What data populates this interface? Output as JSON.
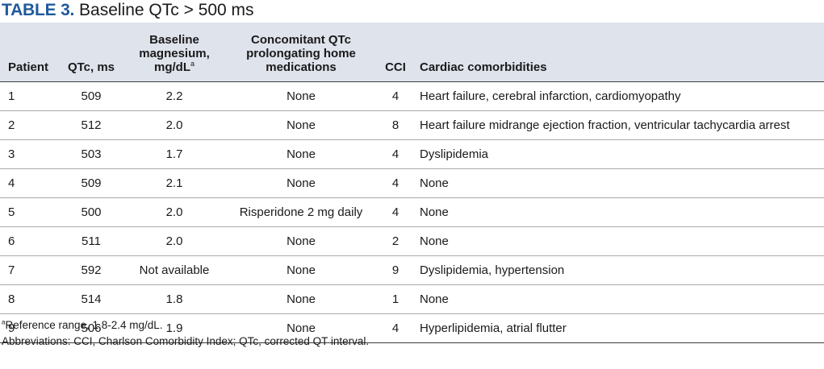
{
  "title": {
    "label": "TABLE 3.",
    "text": "Baseline QTc > 500 ms"
  },
  "headers": {
    "patient": "Patient",
    "qtc": "QTc, ms",
    "magnesium_line1": "Baseline",
    "magnesium_line2": "magnesium,",
    "magnesium_line3": "mg/dL",
    "magnesium_mark": "a",
    "medications_line1": "Concomitant QTc",
    "medications_line2": "prolongating home",
    "medications_line3": "medications",
    "cci": "CCI",
    "comorbidities": "Cardiac comorbidities"
  },
  "rows": [
    {
      "patient": "1",
      "qtc": "509",
      "magnesium": "2.2",
      "medications": "None",
      "cci": "4",
      "comorbidities": "Heart failure, cerebral infarction, cardiomyopathy"
    },
    {
      "patient": "2",
      "qtc": "512",
      "magnesium": "2.0",
      "medications": "None",
      "cci": "8",
      "comorbidities": "Heart failure midrange ejection fraction, ventricular tachycardia arrest"
    },
    {
      "patient": "3",
      "qtc": "503",
      "magnesium": "1.7",
      "medications": "None",
      "cci": "4",
      "comorbidities": "Dyslipidemia"
    },
    {
      "patient": "4",
      "qtc": "509",
      "magnesium": "2.1",
      "medications": "None",
      "cci": "4",
      "comorbidities": "None"
    },
    {
      "patient": "5",
      "qtc": "500",
      "magnesium": "2.0",
      "medications": "Risperidone 2 mg daily",
      "cci": "4",
      "comorbidities": "None"
    },
    {
      "patient": "6",
      "qtc": "511",
      "magnesium": "2.0",
      "medications": "None",
      "cci": "2",
      "comorbidities": "None"
    },
    {
      "patient": "7",
      "qtc": "592",
      "magnesium": "Not available",
      "medications": "None",
      "cci": "9",
      "comorbidities": "Dyslipidemia, hypertension"
    },
    {
      "patient": "8",
      "qtc": "514",
      "magnesium": "1.8",
      "medications": "None",
      "cci": "1",
      "comorbidities": "None"
    },
    {
      "patient": "9",
      "qtc": "506",
      "magnesium": "1.9",
      "medications": "None",
      "cci": "4",
      "comorbidities": "Hyperlipidemia, atrial flutter"
    }
  ],
  "footnotes": {
    "mark": "a",
    "reference": "Reference range, 1.8-2.4 mg/dL.",
    "abbreviations": "Abbreviations: CCI, Charlson Comorbidity Index; QTc, corrected QT interval."
  },
  "colors": {
    "title_label": "#1f5a9c",
    "header_bg": "#dfe3ec",
    "rule_dark": "#3c3c3c",
    "rule_light": "#a9a9a9"
  }
}
